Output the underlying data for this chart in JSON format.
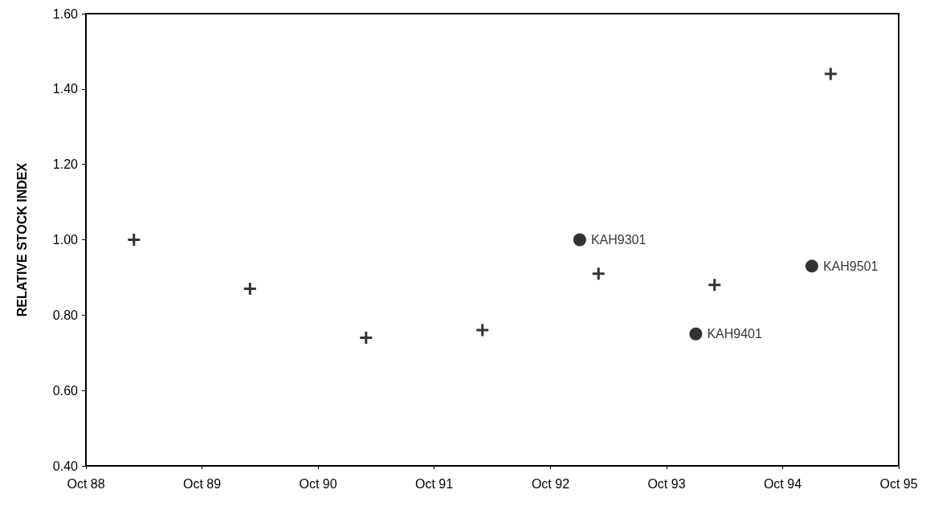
{
  "chart_data": {
    "type": "scatter",
    "ylabel": "RELATIVE STOCK INDEX",
    "x": [
      "1989-03",
      "1990-03",
      "1991-03",
      "1992-03",
      "1993-03",
      "1994-03",
      "1995-03"
    ],
    "series": [
      {
        "color": "#000000",
        "marker": "cross",
        "values": [
          1.0,
          0.87,
          0.74,
          0.76,
          0.91,
          0.88,
          1.44
        ]
      },
      {
        "color": "#000000",
        "marker": "circle",
        "x": [
          "1993-01",
          "1994-01",
          "1995-01"
        ],
        "values": [
          1.0,
          0.75,
          0.93
        ],
        "value_labels": [
          "KAH9301",
          "KAH9401",
          "KAH9501"
        ]
      }
    ],
    "xlim": [
      "1988-10",
      "1995-10"
    ],
    "xticks": [
      {
        "value": "1988-10",
        "label": "Oct 88"
      },
      {
        "value": "1989-10",
        "label": "Oct 89"
      },
      {
        "value": "1990-10",
        "label": "Oct 90"
      },
      {
        "value": "1991-10",
        "label": "Oct 91"
      },
      {
        "value": "1992-10",
        "label": "Oct 92"
      },
      {
        "value": "1993-10",
        "label": "Oct 93"
      },
      {
        "value": "1994-10",
        "label": "Oct 94"
      },
      {
        "value": "1995-10",
        "label": "Oct 95"
      }
    ],
    "ylim": [
      0.4,
      1.6
    ],
    "yticks": [
      {
        "value": 0.4,
        "label": "0.40"
      },
      {
        "value": 0.6,
        "label": "0.60"
      },
      {
        "value": 0.8,
        "label": "0.80"
      },
      {
        "value": 1.0,
        "label": "1.00"
      },
      {
        "value": 1.2,
        "label": "1.20"
      },
      {
        "value": 1.4,
        "label": "1.40"
      },
      {
        "value": 1.6,
        "label": "1.60"
      }
    ],
    "grid": false
  }
}
